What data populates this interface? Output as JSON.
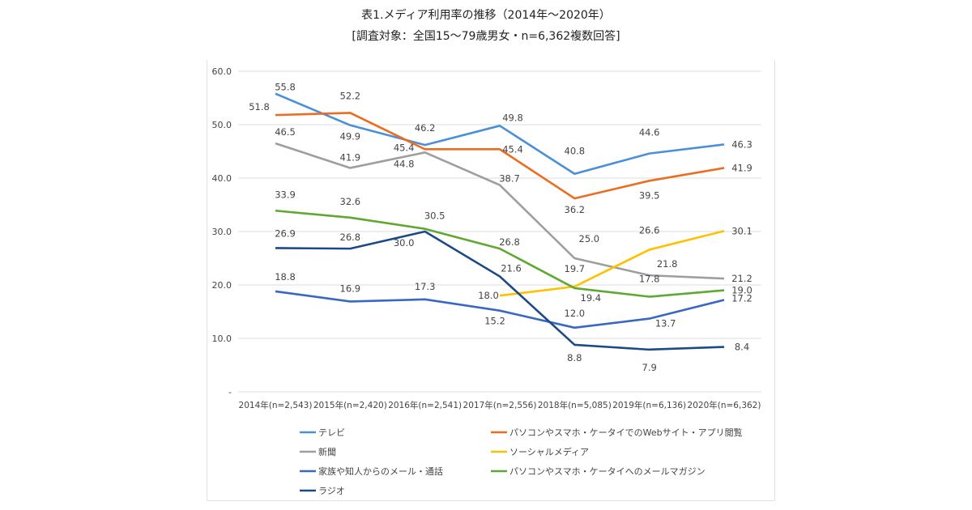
{
  "chart_data": {
    "type": "line",
    "title": "表1.メディア利用率の推移（2014年～2020年）",
    "subtitle": "[調査対象：全国15～79歳男女・n=6,362複数回答]",
    "xlabel": "",
    "ylabel": "",
    "ylim": [
      0,
      60
    ],
    "y_ticks": [
      {
        "value": 60,
        "label": "60.0"
      },
      {
        "value": 50,
        "label": "50.0"
      },
      {
        "value": 40,
        "label": "40.0"
      },
      {
        "value": 30,
        "label": "30.0"
      },
      {
        "value": 20,
        "label": "20.0"
      },
      {
        "value": 10,
        "label": "10.0"
      },
      {
        "value": 0,
        "label": "-"
      }
    ],
    "grid": true,
    "legend_position": "bottom",
    "categories": [
      "2014年(n=2,543)",
      "2015年(n=2,420)",
      "2016年(n=2,541)",
      "2017年(n=2,556)",
      "2018年(n=5,085)",
      "2019年(n=6,136)",
      "2020年(n=6,362)"
    ],
    "series": [
      {
        "name": "テレビ",
        "color": "#4a90d9",
        "values": [
          55.8,
          49.9,
          46.2,
          49.8,
          40.8,
          44.6,
          46.3
        ]
      },
      {
        "name": "パソコンやスマホ・ケータイでのWebサイト・アプリ閲覧",
        "color": "#ed6d1f",
        "values": [
          51.8,
          52.2,
          45.4,
          45.4,
          36.2,
          39.5,
          41.9
        ]
      },
      {
        "name": "新聞",
        "color": "#9e9e9e",
        "values": [
          46.5,
          41.9,
          44.8,
          38.7,
          25.0,
          21.8,
          21.2
        ]
      },
      {
        "name": "ソーシャルメディア",
        "color": "#ffc000",
        "values": [
          null,
          null,
          null,
          18.0,
          19.7,
          26.6,
          30.1
        ]
      },
      {
        "name": "家族や知人からのメール・通話",
        "color": "#3a67c4",
        "values": [
          18.8,
          16.9,
          17.3,
          15.2,
          12.0,
          13.7,
          17.2
        ]
      },
      {
        "name": "パソコンやスマホ・ケータイへのメールマガジン",
        "color": "#5fa832",
        "values": [
          33.9,
          32.6,
          30.5,
          26.8,
          19.4,
          17.8,
          19.0
        ]
      },
      {
        "name": "ラジオ",
        "color": "#1b4a86",
        "values": [
          26.9,
          26.8,
          30.0,
          21.6,
          8.8,
          7.9,
          8.4
        ]
      }
    ]
  }
}
